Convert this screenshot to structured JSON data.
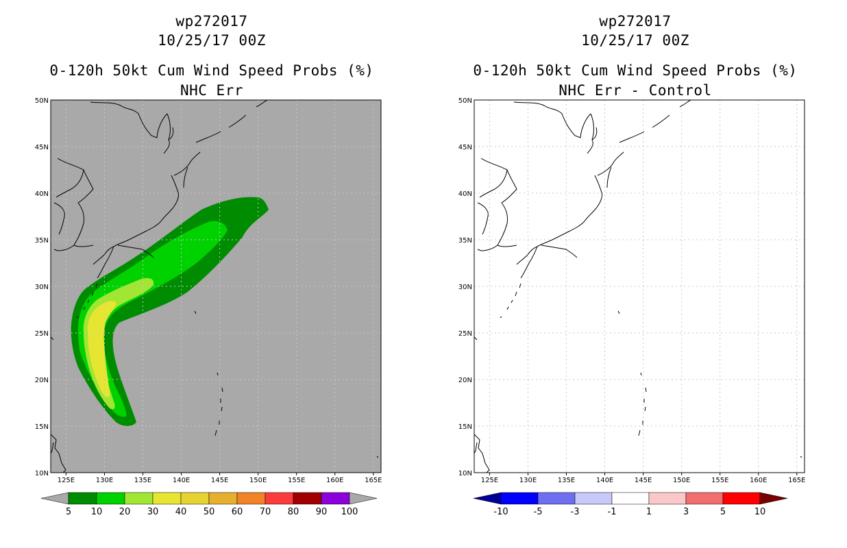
{
  "colors": {
    "left_background": "#a9a9a9",
    "map_line": "#000000",
    "grid_line": "#c8c8c8"
  },
  "panels": [
    {
      "id": "left",
      "title_lines": [
        "wp272017",
        "10/25/17 00Z",
        "0-120h 50kt Cum Wind Speed Probs (%)",
        "NHC Err"
      ]
    },
    {
      "id": "right",
      "title_lines": [
        "wp272017",
        "10/25/17 00Z",
        "0-120h 50kt Cum Wind Speed Probs (%)",
        "NHC Err - Control"
      ]
    }
  ],
  "axes": {
    "lon_labels": [
      "125E",
      "130E",
      "135E",
      "140E",
      "145E",
      "150E",
      "155E",
      "160E",
      "165E"
    ],
    "lat_labels": [
      "50N",
      "45N",
      "40N",
      "35N",
      "30N",
      "25N",
      "20N",
      "15N",
      "10N"
    ],
    "lon_range": [
      123,
      166
    ],
    "lat_range": [
      10,
      50
    ]
  },
  "colorbar_left": {
    "labels": [
      "5",
      "10",
      "20",
      "30",
      "40",
      "50",
      "60",
      "70",
      "80",
      "90",
      "100"
    ],
    "colors": [
      "#008c00",
      "#00d200",
      "#a0e632",
      "#e6e632",
      "#e6d232",
      "#e6af2d",
      "#f08228",
      "#fa3c3c",
      "#a00000",
      "#8c00dc"
    ],
    "under_color": "#a9a9a9",
    "over_color": "#a9a9a9"
  },
  "colorbar_right": {
    "labels": [
      "-10",
      "-5",
      "-3",
      "-1",
      "1",
      "3",
      "5",
      "10"
    ],
    "colors": [
      "#0000ff",
      "#6e6ef0",
      "#c8c8fa",
      "#ffffff",
      "#fac8c8",
      "#f06e6e",
      "#ff0000"
    ],
    "under_color": "#000096",
    "over_color": "#780000"
  },
  "probability_bands": [
    {
      "min_pct": 5,
      "color": "#008c00"
    },
    {
      "min_pct": 10,
      "color": "#00d200"
    },
    {
      "min_pct": 20,
      "color": "#a0e632"
    },
    {
      "min_pct": 30,
      "color": "#e6e632"
    }
  ]
}
